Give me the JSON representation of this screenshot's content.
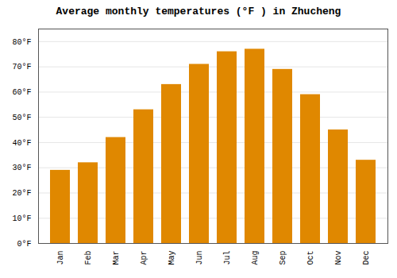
{
  "chart_data": {
    "type": "bar",
    "title": "Average monthly temperatures (°F ) in Zhucheng",
    "categories": [
      "Jan",
      "Feb",
      "Mar",
      "Apr",
      "May",
      "Jun",
      "Jul",
      "Aug",
      "Sep",
      "Oct",
      "Nov",
      "Dec"
    ],
    "values": [
      29,
      32,
      42,
      53,
      63,
      71,
      76,
      77,
      69,
      59,
      45,
      33
    ],
    "color": "#E08800",
    "ylim": [
      0,
      85
    ],
    "yticks": [
      {
        "value": 0,
        "label": "0°F"
      },
      {
        "value": 10,
        "label": "10°F"
      },
      {
        "value": 20,
        "label": "20°F"
      },
      {
        "value": 30,
        "label": "30°F"
      },
      {
        "value": 40,
        "label": "40°F"
      },
      {
        "value": 50,
        "label": "50°F"
      },
      {
        "value": 60,
        "label": "60°F"
      },
      {
        "value": 70,
        "label": "70°F"
      },
      {
        "value": 80,
        "label": "80°F"
      }
    ],
    "grid": true
  }
}
